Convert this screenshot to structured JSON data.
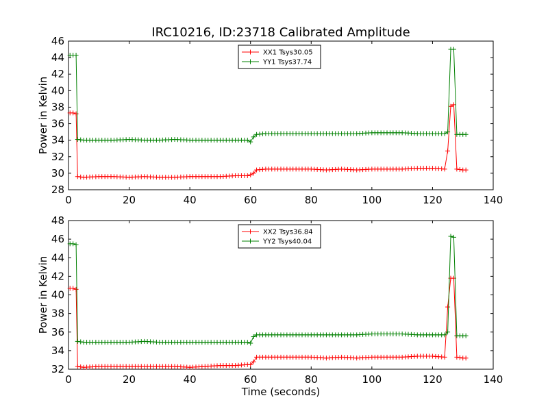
{
  "title": "IRC10216, ID:23718 Calibrated Amplitude",
  "chart_data": [
    {
      "type": "line",
      "ylabel": "Power in Kelvin",
      "xlabel": "",
      "xlim": [
        0,
        140
      ],
      "ylim": [
        28,
        46
      ],
      "xticks": [
        0,
        20,
        40,
        60,
        80,
        100,
        120,
        140
      ],
      "yticks": [
        28,
        30,
        32,
        34,
        36,
        38,
        40,
        42,
        44,
        46
      ],
      "legend_position": "top-center",
      "series": [
        {
          "name": "XX1 Tsys30.05",
          "color": "#ff0000",
          "x": [
            0.5,
            1.5,
            2.5,
            3,
            5,
            10,
            15,
            20,
            25,
            30,
            35,
            40,
            45,
            50,
            55,
            59,
            60,
            61,
            62,
            65,
            70,
            75,
            80,
            85,
            90,
            95,
            100,
            105,
            110,
            115,
            120,
            124,
            125,
            126,
            127,
            128,
            130,
            131
          ],
          "values": [
            37.3,
            37.3,
            37.2,
            29.6,
            29.5,
            29.6,
            29.6,
            29.5,
            29.6,
            29.5,
            29.5,
            29.6,
            29.6,
            29.6,
            29.7,
            29.7,
            29.8,
            30.0,
            30.4,
            30.5,
            30.5,
            30.5,
            30.5,
            30.4,
            30.5,
            30.4,
            30.5,
            30.5,
            30.5,
            30.6,
            30.6,
            30.5,
            32.7,
            38.1,
            38.3,
            30.5,
            30.4,
            30.4
          ]
        },
        {
          "name": "YY1 Tsys37.74",
          "color": "#008000",
          "x": [
            0.5,
            1.5,
            2.5,
            3,
            5,
            10,
            15,
            20,
            25,
            30,
            35,
            40,
            45,
            50,
            55,
            59,
            60,
            61,
            62,
            65,
            70,
            75,
            80,
            85,
            90,
            95,
            100,
            105,
            110,
            115,
            120,
            124,
            125,
            126,
            127,
            128,
            130,
            131
          ],
          "values": [
            44.3,
            44.3,
            44.3,
            34.1,
            34.0,
            34.0,
            34.0,
            34.1,
            34.0,
            34.0,
            34.1,
            34.0,
            34.0,
            34.0,
            34.0,
            34.0,
            33.8,
            34.4,
            34.7,
            34.8,
            34.8,
            34.8,
            34.8,
            34.8,
            34.8,
            34.8,
            34.9,
            34.9,
            34.9,
            34.8,
            34.8,
            34.8,
            35.0,
            45.0,
            45.0,
            34.7,
            34.7,
            34.7
          ]
        }
      ]
    },
    {
      "type": "line",
      "ylabel": "Power in Kelvin",
      "xlabel": "Time (seconds)",
      "xlim": [
        0,
        140
      ],
      "ylim": [
        32,
        48
      ],
      "xticks": [
        0,
        20,
        40,
        60,
        80,
        100,
        120,
        140
      ],
      "yticks": [
        32,
        34,
        36,
        38,
        40,
        42,
        44,
        46,
        48
      ],
      "legend_position": "top-center",
      "series": [
        {
          "name": "XX2 Tsys36.84",
          "color": "#ff0000",
          "x": [
            0.5,
            1.5,
            2.5,
            3,
            5,
            10,
            15,
            20,
            25,
            30,
            35,
            40,
            45,
            50,
            55,
            59,
            60,
            61,
            62,
            65,
            70,
            75,
            80,
            85,
            90,
            95,
            100,
            105,
            110,
            115,
            120,
            124,
            125,
            126,
            127,
            128,
            130,
            131
          ],
          "values": [
            40.7,
            40.7,
            40.6,
            32.3,
            32.2,
            32.3,
            32.3,
            32.3,
            32.3,
            32.3,
            32.3,
            32.2,
            32.3,
            32.4,
            32.4,
            32.5,
            32.5,
            32.8,
            33.3,
            33.3,
            33.3,
            33.3,
            33.3,
            33.2,
            33.3,
            33.2,
            33.3,
            33.3,
            33.3,
            33.4,
            33.4,
            33.3,
            38.7,
            41.8,
            41.8,
            33.3,
            33.2,
            33.2
          ]
        },
        {
          "name": "YY2 Tsys40.04",
          "color": "#008000",
          "x": [
            0.5,
            1.5,
            2.5,
            3,
            5,
            10,
            15,
            20,
            25,
            30,
            35,
            40,
            45,
            50,
            55,
            59,
            60,
            61,
            62,
            65,
            70,
            75,
            80,
            85,
            90,
            95,
            100,
            105,
            110,
            115,
            120,
            124,
            125,
            126,
            127,
            128,
            130,
            131
          ],
          "values": [
            45.5,
            45.5,
            45.4,
            35.0,
            34.9,
            34.9,
            34.9,
            34.9,
            35.0,
            34.9,
            34.9,
            34.9,
            34.9,
            34.9,
            34.9,
            34.9,
            34.8,
            35.5,
            35.7,
            35.7,
            35.7,
            35.7,
            35.7,
            35.7,
            35.7,
            35.7,
            35.8,
            35.8,
            35.8,
            35.7,
            35.7,
            35.7,
            36.0,
            46.3,
            46.2,
            35.6,
            35.6,
            35.6
          ]
        }
      ]
    }
  ]
}
